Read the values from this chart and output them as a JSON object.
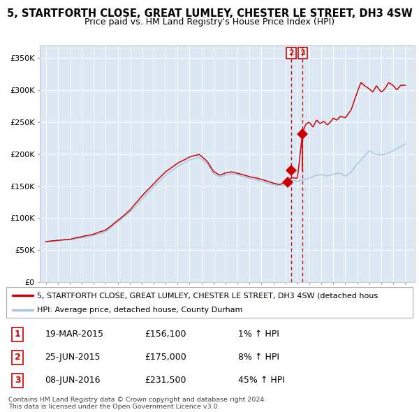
{
  "title": "5, STARTFORTH CLOSE, GREAT LUMLEY, CHESTER LE STREET, DH3 4SW",
  "subtitle": "Price paid vs. HM Land Registry's House Price Index (HPI)",
  "title_fontsize": 10.5,
  "subtitle_fontsize": 9,
  "ylim": [
    0,
    370000
  ],
  "yticks": [
    0,
    50000,
    100000,
    150000,
    200000,
    250000,
    300000,
    350000
  ],
  "ytick_labels": [
    "£0",
    "£50K",
    "£100K",
    "£150K",
    "£200K",
    "£250K",
    "£300K",
    "£350K"
  ],
  "background_color": "#dce9f5",
  "grid_color": "#ffffff",
  "red_line_color": "#cc0000",
  "blue_line_color": "#aac4e0",
  "marker_color": "#cc0000",
  "dashed_line_color": "#cc0000",
  "sale_dates": [
    2015.21,
    2015.48,
    2016.43
  ],
  "sale_prices": [
    156100,
    175000,
    231500
  ],
  "legend_red_label": "5, STARTFORTH CLOSE, GREAT LUMLEY, CHESTER LE STREET, DH3 4SW (detached hous",
  "legend_blue_label": "HPI: Average price, detached house, County Durham",
  "table_rows": [
    {
      "num": "1",
      "date": "19-MAR-2015",
      "price": "£156,100",
      "change": "1% ↑ HPI"
    },
    {
      "num": "2",
      "date": "25-JUN-2015",
      "price": "£175,000",
      "change": "8% ↑ HPI"
    },
    {
      "num": "3",
      "date": "08-JUN-2016",
      "price": "£231,500",
      "change": "45% ↑ HPI"
    }
  ],
  "footer": "Contains HM Land Registry data © Crown copyright and database right 2024.\nThis data is licensed under the Open Government Licence v3.0.",
  "hpi_waypoints_x": [
    1995,
    1996,
    1997,
    1998,
    1999,
    2000,
    2001,
    2002,
    2003,
    2004,
    2005,
    2006,
    2007,
    2007.8,
    2008.5,
    2009,
    2009.5,
    2010,
    2010.5,
    2011,
    2012,
    2013,
    2014,
    2014.5,
    2015.0,
    2015.2,
    2015.5,
    2016.0,
    2016.5,
    2017.0,
    2017.5,
    2018,
    2018.5,
    2019,
    2019.5,
    2020,
    2020.5,
    2021,
    2021.5,
    2022,
    2022.5,
    2023,
    2023.5,
    2024,
    2024.5,
    2025
  ],
  "hpi_waypoints_y": [
    63000,
    65000,
    67000,
    70000,
    74000,
    80000,
    95000,
    110000,
    130000,
    150000,
    168000,
    182000,
    192000,
    196000,
    185000,
    170000,
    165000,
    168000,
    170000,
    168000,
    162000,
    158000,
    152000,
    150000,
    153000,
    155000,
    160000,
    158000,
    160000,
    163000,
    167000,
    168000,
    166000,
    168000,
    170000,
    165000,
    172000,
    185000,
    195000,
    205000,
    200000,
    198000,
    200000,
    205000,
    210000,
    215000
  ],
  "red_waypoints_x": [
    1995,
    1996,
    1997,
    1998,
    1999,
    2000,
    2001,
    2002,
    2003,
    2004,
    2005,
    2006,
    2007,
    2007.8,
    2008.5,
    2009,
    2009.5,
    2010,
    2010.5,
    2011,
    2012,
    2013,
    2014,
    2014.5,
    2015.0,
    2015.2,
    2015.5,
    2016.0,
    2016.43,
    2016.7,
    2017.0,
    2017.3,
    2017.6,
    2017.9,
    2018.2,
    2018.5,
    2018.8,
    2019,
    2019.3,
    2019.6,
    2020,
    2020.5,
    2021,
    2021.3,
    2021.6,
    2022,
    2022.3,
    2022.6,
    2023,
    2023.3,
    2023.6,
    2024,
    2024.3,
    2024.6,
    2025
  ],
  "red_waypoints_y": [
    63000,
    65000,
    67000,
    71000,
    75000,
    81000,
    96000,
    112000,
    133000,
    152000,
    170000,
    184000,
    194000,
    198000,
    187000,
    172000,
    167000,
    170000,
    172000,
    170000,
    164000,
    160000,
    154000,
    152000,
    155000,
    156000,
    162000,
    160000,
    231500,
    245000,
    248000,
    240000,
    252000,
    246000,
    250000,
    244000,
    250000,
    255000,
    252000,
    258000,
    255000,
    268000,
    295000,
    310000,
    305000,
    300000,
    295000,
    305000,
    295000,
    300000,
    310000,
    305000,
    298000,
    305000,
    305000
  ]
}
